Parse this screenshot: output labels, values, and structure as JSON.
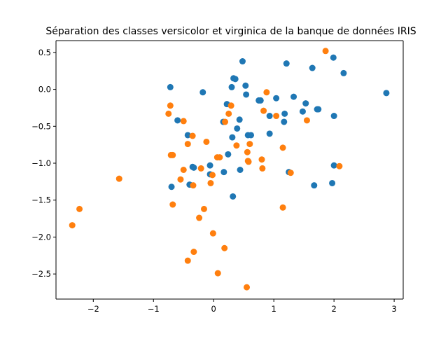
{
  "chart_data": {
    "type": "scatter",
    "title": "Séparation des classes versicolor et virginica de la banque de données IRIS",
    "xlabel": "",
    "ylabel": "",
    "xlim": [
      -2.62,
      3.15
    ],
    "ylim": [
      -2.84,
      0.66
    ],
    "xticks": [
      -2,
      -1,
      0,
      1,
      2,
      3
    ],
    "xtick_labels": [
      "−2",
      "−1",
      "0",
      "1",
      "2",
      "3"
    ],
    "yticks": [
      -2.5,
      -2.0,
      -1.5,
      -1.0,
      -0.5,
      0.0,
      0.5
    ],
    "ytick_labels": [
      "−2.5",
      "−2.0",
      "−1.5",
      "−1.0",
      "−0.5",
      "0.0",
      "0.5"
    ],
    "grid": false,
    "legend": null,
    "series": [
      {
        "color": "#1f77b4",
        "points": [
          [
            -0.72,
            0.03
          ],
          [
            -0.6,
            -0.42
          ],
          [
            -0.43,
            -0.62
          ],
          [
            -0.35,
            -1.05
          ],
          [
            -0.33,
            -1.06
          ],
          [
            -0.4,
            -1.29
          ],
          [
            -0.7,
            -1.32
          ],
          [
            -0.18,
            -0.04
          ],
          [
            -0.06,
            -1.03
          ],
          [
            -0.06,
            -1.15
          ],
          [
            0.16,
            -0.44
          ],
          [
            0.17,
            -1.12
          ],
          [
            0.22,
            -0.2
          ],
          [
            0.24,
            -0.88
          ],
          [
            0.3,
            0.03
          ],
          [
            0.31,
            -0.65
          ],
          [
            0.33,
            0.15
          ],
          [
            0.36,
            0.14
          ],
          [
            0.39,
            -0.53
          ],
          [
            0.43,
            -0.41
          ],
          [
            0.44,
            -1.09
          ],
          [
            0.48,
            0.38
          ],
          [
            0.53,
            0.05
          ],
          [
            0.54,
            -0.07
          ],
          [
            0.57,
            -0.62
          ],
          [
            0.62,
            -0.62
          ],
          [
            0.32,
            -1.45
          ],
          [
            0.75,
            -0.15
          ],
          [
            0.78,
            -0.15
          ],
          [
            0.93,
            -0.36
          ],
          [
            0.93,
            -0.6
          ],
          [
            1.04,
            -0.12
          ],
          [
            1.17,
            -0.44
          ],
          [
            1.18,
            -0.33
          ],
          [
            1.21,
            0.35
          ],
          [
            1.25,
            -1.12
          ],
          [
            1.33,
            -0.1
          ],
          [
            1.48,
            -0.3
          ],
          [
            1.53,
            -0.19
          ],
          [
            1.64,
            0.29
          ],
          [
            1.67,
            -1.3
          ],
          [
            1.72,
            -0.27
          ],
          [
            1.74,
            -0.27
          ],
          [
            1.97,
            -1.27
          ],
          [
            1.99,
            0.43
          ],
          [
            2.0,
            -1.03
          ],
          [
            2.0,
            -0.36
          ],
          [
            2.16,
            0.22
          ],
          [
            2.87,
            -0.05
          ]
        ]
      },
      {
        "color": "#ff7f0e",
        "points": [
          [
            -2.35,
            -1.84
          ],
          [
            -2.23,
            -1.62
          ],
          [
            -1.57,
            -1.21
          ],
          [
            -0.75,
            -0.33
          ],
          [
            -0.72,
            -0.22
          ],
          [
            -0.71,
            -0.89
          ],
          [
            -0.68,
            -0.89
          ],
          [
            -0.68,
            -1.56
          ],
          [
            -0.55,
            -1.22
          ],
          [
            -0.5,
            -0.43
          ],
          [
            -0.5,
            -1.09
          ],
          [
            -0.43,
            -0.74
          ],
          [
            -0.43,
            -2.32
          ],
          [
            -0.35,
            -0.63
          ],
          [
            -0.34,
            -1.3
          ],
          [
            -0.33,
            -2.2
          ],
          [
            -0.24,
            -1.74
          ],
          [
            -0.21,
            -1.07
          ],
          [
            -0.16,
            -1.62
          ],
          [
            -0.12,
            -0.71
          ],
          [
            -0.05,
            -1.27
          ],
          [
            -0.02,
            -1.16
          ],
          [
            -0.01,
            -1.95
          ],
          [
            0.06,
            -0.92
          ],
          [
            0.1,
            -0.92
          ],
          [
            0.07,
            -2.49
          ],
          [
            0.18,
            -2.15
          ],
          [
            0.19,
            -0.44
          ],
          [
            0.25,
            -0.33
          ],
          [
            0.29,
            -0.22
          ],
          [
            0.38,
            -0.76
          ],
          [
            0.56,
            -0.85
          ],
          [
            0.57,
            -0.97
          ],
          [
            0.58,
            -0.98
          ],
          [
            0.6,
            -0.74
          ],
          [
            0.55,
            -2.68
          ],
          [
            0.8,
            -0.95
          ],
          [
            0.81,
            -1.07
          ],
          [
            0.83,
            -0.29
          ],
          [
            0.88,
            -0.04
          ],
          [
            1.04,
            -0.36
          ],
          [
            1.15,
            -0.79
          ],
          [
            1.15,
            -1.6
          ],
          [
            1.28,
            -1.13
          ],
          [
            1.55,
            -0.42
          ],
          [
            1.86,
            0.52
          ],
          [
            2.09,
            -1.04
          ]
        ]
      }
    ]
  }
}
